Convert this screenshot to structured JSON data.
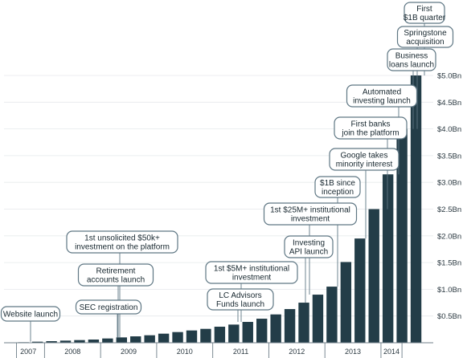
{
  "chart_data": {
    "type": "bar",
    "title": "",
    "xlabel": "",
    "ylabel": "",
    "color": "#233d48",
    "ylim": [
      0,
      5.25
    ],
    "y_ticks": [
      {
        "value": 0.5,
        "label": "$0.5Bn"
      },
      {
        "value": 1.0,
        "label": "$1.0Bn"
      },
      {
        "value": 1.5,
        "label": "$1.5Bn"
      },
      {
        "value": 2.0,
        "label": "$2.0Bn"
      },
      {
        "value": 2.5,
        "label": "$2.5Bn"
      },
      {
        "value": 3.0,
        "label": "$3.0Bn"
      },
      {
        "value": 3.5,
        "label": "$3.5Bn"
      },
      {
        "value": 4.0,
        "label": "$4.0Bn"
      },
      {
        "value": 4.5,
        "label": "$4.5Bn"
      },
      {
        "value": 5.0,
        "label": "$5.0Bn"
      }
    ],
    "years": [
      {
        "label": "2007",
        "start": 0,
        "end": 2
      },
      {
        "label": "2008",
        "start": 2,
        "end": 6
      },
      {
        "label": "2009",
        "start": 6,
        "end": 10
      },
      {
        "label": "2010",
        "start": 10,
        "end": 14
      },
      {
        "label": "2011",
        "start": 14,
        "end": 18
      },
      {
        "label": "2012",
        "start": 18,
        "end": 22
      },
      {
        "label": "2013",
        "start": 22,
        "end": 26
      },
      {
        "label": "2014",
        "start": 26,
        "end": 27.5
      }
    ],
    "values": [
      0.01,
      0.02,
      0.03,
      0.04,
      0.05,
      0.06,
      0.08,
      0.1,
      0.12,
      0.14,
      0.17,
      0.2,
      0.23,
      0.26,
      0.3,
      0.34,
      0.39,
      0.45,
      0.53,
      0.63,
      0.75,
      0.9,
      1.05,
      1.51,
      1.95,
      2.5,
      3.15,
      4.0,
      5.0
    ],
    "annotations": [
      {
        "lines": [
          "Website launch"
        ],
        "bar": 1
      },
      {
        "lines": [
          "SEC registration"
        ],
        "bar": 7
      },
      {
        "lines": [
          "Retirement",
          "accounts launch"
        ],
        "bar": 7
      },
      {
        "lines": [
          "1st unsolicited $50k+",
          "investment on the platform"
        ],
        "bar": 7
      },
      {
        "lines": [
          "LC Advisors",
          "Funds launch"
        ],
        "bar": 16
      },
      {
        "lines": [
          "1st $5M+ institutional",
          "investment"
        ],
        "bar": 16
      },
      {
        "lines": [
          "Investing",
          "API launch"
        ],
        "bar": 20
      },
      {
        "lines": [
          "1st $25M+ institutional",
          "investment"
        ],
        "bar": 21
      },
      {
        "lines": [
          "$1B since",
          "inception"
        ],
        "bar": 22
      },
      {
        "lines": [
          "Google takes",
          "minority interest"
        ],
        "bar": 24
      },
      {
        "lines": [
          "First banks",
          "join the platform"
        ],
        "bar": 25
      },
      {
        "lines": [
          "Automated",
          "investing launch"
        ],
        "bar": 26
      },
      {
        "lines": [
          "Business",
          "loans launch"
        ],
        "bar": 27
      },
      {
        "lines": [
          "Springstone",
          "acquisition"
        ],
        "bar": 27
      },
      {
        "lines": [
          "First",
          "$1B quarter"
        ],
        "bar": 28
      }
    ]
  }
}
